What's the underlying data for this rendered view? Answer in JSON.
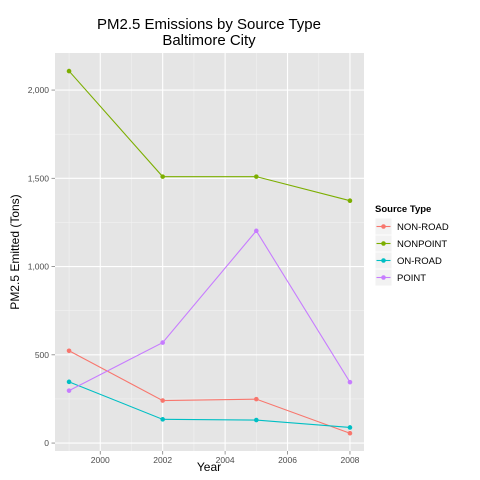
{
  "chart_data": {
    "type": "line",
    "title_lines": [
      "PM2.5 Emissions by Source Type",
      "Baltimore City"
    ],
    "xlabel": "Year",
    "ylabel": "PM2.5 Emitted (Tons)",
    "x": [
      1999,
      2002,
      2005,
      2008
    ],
    "x_ticks": [
      2000,
      2002,
      2004,
      2006,
      2008
    ],
    "x_tick_labels": [
      "2000",
      "2002",
      "2004",
      "2006",
      "2008"
    ],
    "xlim": [
      1998.55,
      2008.45
    ],
    "y_ticks": [
      0,
      500,
      1000,
      1500,
      2000
    ],
    "y_tick_labels": [
      "0",
      "500",
      "1,000",
      "1,500",
      "2,000"
    ],
    "ylim": [
      -45,
      2210
    ],
    "grid": true,
    "legend": {
      "title": "Source Type",
      "position": "right"
    },
    "series": [
      {
        "name": "NON-ROAD",
        "color": "#F8766D",
        "values": [
          522.9,
          240.8,
          248.9,
          55.8
        ]
      },
      {
        "name": "NONPOINT",
        "color": "#7CAE00",
        "values": [
          2107.6,
          1509.5,
          1509.5,
          1373.2
        ]
      },
      {
        "name": "ON-ROAD",
        "color": "#00BFC4",
        "values": [
          346.8,
          134.3,
          130.4,
          88.3
        ]
      },
      {
        "name": "POINT",
        "color": "#C77CFF",
        "values": [
          296.8,
          569.3,
          1202.5,
          344.98
        ]
      }
    ]
  }
}
